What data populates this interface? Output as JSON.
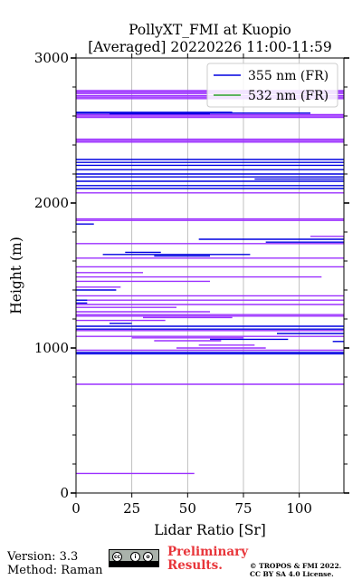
{
  "chart_data": {
    "type": "line",
    "title_line1": "PollyXT_FMI at Kuopio",
    "title_line2": "[Averaged] 20220226 11:00-11:59",
    "xlabel": "Lidar Ratio [Sr]",
    "ylabel": "Height (m)",
    "xlim": [
      0,
      120
    ],
    "ylim": [
      0,
      3000
    ],
    "x_ticks": [
      0,
      25,
      50,
      75,
      100
    ],
    "y_ticks": [
      0,
      1000,
      2000,
      3000
    ],
    "grid": "vertical",
    "legend_position": "top-right",
    "colors": {
      "355": "#0000e0",
      "532": "#2ca02c",
      "purple": "#9b30ff"
    },
    "series": [
      {
        "name": "355 nm (FR)",
        "color": "#0000e0",
        "segments": [
          [
            0,
            2625,
            70
          ],
          [
            0,
            2620,
            105
          ],
          [
            15,
            2615,
            60
          ],
          [
            0,
            2300,
            120
          ],
          [
            0,
            2280,
            120
          ],
          [
            0,
            2260,
            120
          ],
          [
            0,
            2230,
            120
          ],
          [
            0,
            2200,
            120
          ],
          [
            0,
            2180,
            120
          ],
          [
            80,
            2165,
            120
          ],
          [
            0,
            2150,
            120
          ],
          [
            0,
            2120,
            120
          ],
          [
            0,
            2100,
            120
          ],
          [
            0,
            1855,
            8
          ],
          [
            55,
            1750,
            120
          ],
          [
            85,
            1730,
            120
          ],
          [
            22,
            1660,
            38
          ],
          [
            12,
            1645,
            78
          ],
          [
            35,
            1635,
            60
          ],
          [
            0,
            1400,
            18
          ],
          [
            0,
            1330,
            5
          ],
          [
            0,
            1310,
            5
          ],
          [
            15,
            1170,
            25
          ],
          [
            0,
            1150,
            120
          ],
          [
            0,
            1130,
            120
          ],
          [
            90,
            1100,
            120
          ],
          [
            60,
            1060,
            95
          ],
          [
            115,
            1045,
            120
          ],
          [
            0,
            970,
            120
          ],
          [
            0,
            960,
            120
          ]
        ]
      },
      {
        "name": "532 nm (FR)",
        "color": "#2ca02c",
        "segments": []
      },
      {
        "name": "",
        "color": "#9b30ff",
        "segments": [
          [
            0,
            2775,
            120
          ],
          [
            0,
            2765,
            120
          ],
          [
            0,
            2755,
            120
          ],
          [
            0,
            2740,
            120
          ],
          [
            0,
            2730,
            120
          ],
          [
            0,
            2720,
            120
          ],
          [
            0,
            2610,
            120
          ],
          [
            0,
            2600,
            120
          ],
          [
            0,
            2590,
            120
          ],
          [
            0,
            2440,
            120
          ],
          [
            0,
            2430,
            120
          ],
          [
            0,
            2420,
            120
          ],
          [
            0,
            2070,
            120
          ],
          [
            0,
            1890,
            120
          ],
          [
            0,
            1880,
            120
          ],
          [
            0,
            1720,
            120
          ],
          [
            105,
            1770,
            120
          ],
          [
            0,
            1620,
            120
          ],
          [
            0,
            1560,
            120
          ],
          [
            0,
            1520,
            30
          ],
          [
            0,
            1490,
            110
          ],
          [
            0,
            1460,
            60
          ],
          [
            0,
            1420,
            20
          ],
          [
            0,
            1360,
            120
          ],
          [
            0,
            1330,
            120
          ],
          [
            0,
            1300,
            120
          ],
          [
            0,
            1280,
            45
          ],
          [
            0,
            1250,
            60
          ],
          [
            0,
            1230,
            120
          ],
          [
            0,
            1220,
            120
          ],
          [
            30,
            1210,
            70
          ],
          [
            0,
            1190,
            40
          ],
          [
            0,
            1120,
            120
          ],
          [
            0,
            1080,
            120
          ],
          [
            25,
            1070,
            75
          ],
          [
            35,
            1050,
            65
          ],
          [
            55,
            1020,
            80
          ],
          [
            45,
            1000,
            85
          ],
          [
            0,
            985,
            120
          ],
          [
            0,
            750,
            120
          ],
          [
            0,
            135,
            53
          ]
        ]
      }
    ]
  },
  "footer": {
    "version": "Version: 3.3",
    "method": "Method: Raman",
    "preliminary_line1": "Preliminary",
    "preliminary_line2": "Results.",
    "copyright_line1": "© TROPOS & FMI 2022.",
    "copyright_line2": "CC BY SA 4.0 License."
  }
}
